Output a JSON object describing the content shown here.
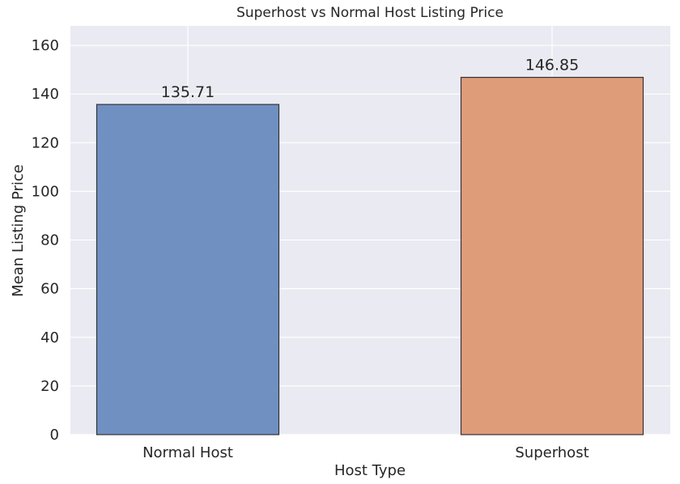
{
  "chart_data": {
    "type": "bar",
    "title": "Superhost vs Normal Host Listing Price",
    "xlabel": "Host Type",
    "ylabel": "Mean Listing Price",
    "categories": [
      "Normal Host",
      "Superhost"
    ],
    "values": [
      135.71,
      146.85
    ],
    "value_labels": [
      "135.71",
      "146.85"
    ],
    "ylim": [
      0,
      168
    ],
    "yticks": [
      0,
      20,
      40,
      60,
      80,
      100,
      120,
      140,
      160
    ],
    "colors": [
      "#7090c2",
      "#df9c79"
    ],
    "edge_color": "#333333",
    "background": "#eaeaf2",
    "grid": true
  }
}
